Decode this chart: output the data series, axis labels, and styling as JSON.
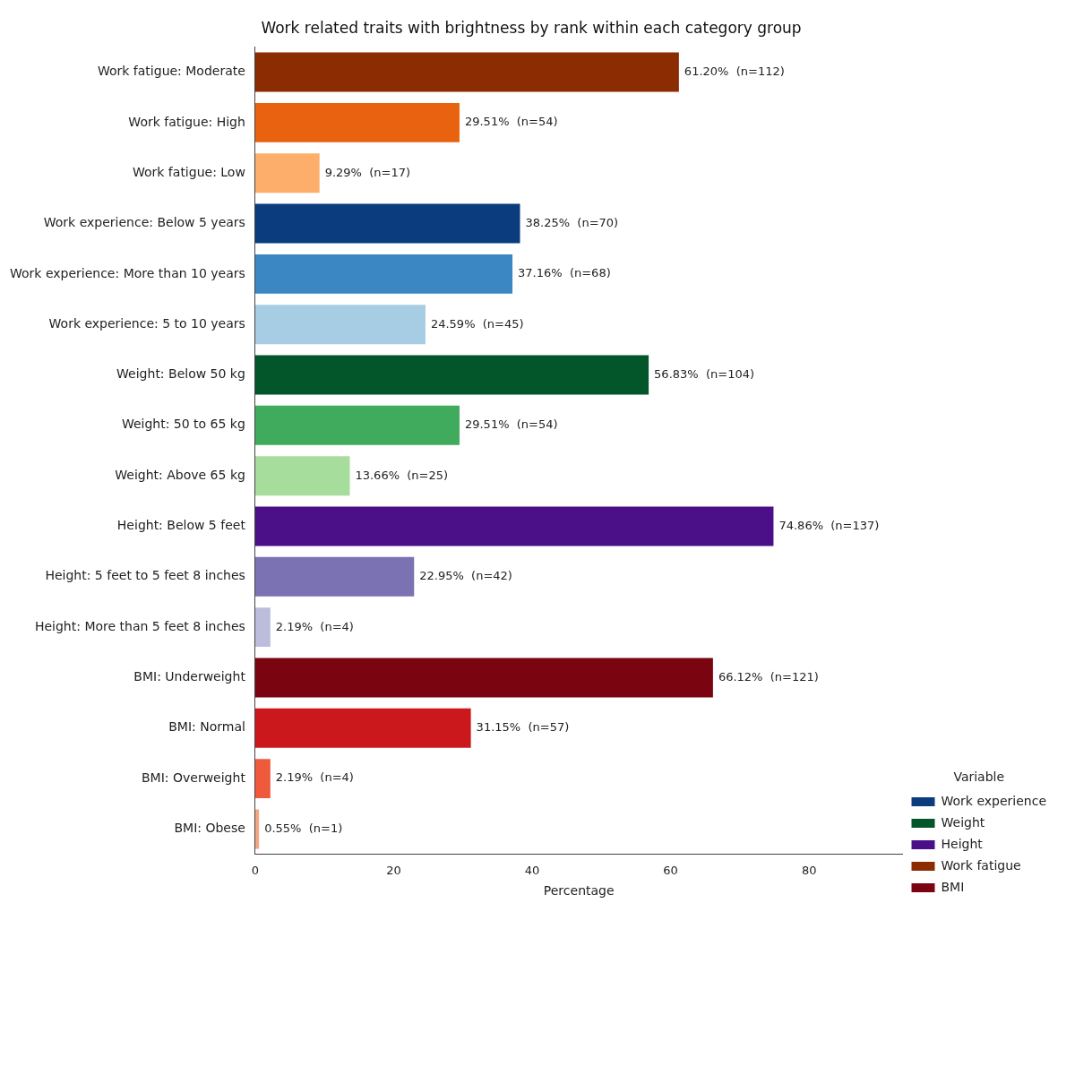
{
  "chart_data": {
    "type": "bar",
    "orientation": "horizontal",
    "title": "Work related traits with brightness by rank within each category group",
    "xlabel": "Percentage",
    "legend_title": "Variable",
    "legend": "bottom right",
    "grid": false,
    "categories": [
      "Work fatigue: Moderate",
      "Work fatigue: High",
      "Work fatigue: Low",
      "Work experience: Below 5 years",
      "Work experience: More than 10 years",
      "Work experience: 5 to 10 years",
      "Weight: Below 50 kg",
      "Weight: 50 to 65 kg",
      "Weight: Above 65 kg",
      "Height: Below 5 feet",
      "Height: 5 feet to 5 feet 8 inches",
      "Height: More than 5 feet 8 inches",
      "BMI: Underweight",
      "BMI: Normal",
      "BMI: Overweight",
      "BMI: Obese"
    ],
    "xlim": [
      0,
      93.5
    ],
    "xticks": [
      0,
      20,
      40,
      60,
      80
    ],
    "series": [
      {
        "name": "Work experience",
        "color": "#0b3c7e",
        "values": [
          null,
          null,
          null,
          38.25,
          37.16,
          24.59,
          null,
          null,
          null,
          null,
          null,
          null,
          null,
          null,
          null,
          null
        ],
        "colors": [
          null,
          null,
          null,
          "#0b3c7e",
          "#3a87c4",
          "#a6cde3",
          null,
          null,
          null,
          null,
          null,
          null,
          null,
          null,
          null,
          null
        ],
        "value_labels": [
          null,
          null,
          null,
          "38.25%  (n=70)",
          "37.16%  (n=68)",
          "24.59%  (n=45)",
          null,
          null,
          null,
          null,
          null,
          null,
          null,
          null,
          null,
          null
        ]
      },
      {
        "name": "Weight",
        "color": "#03552a",
        "values": [
          null,
          null,
          null,
          null,
          null,
          null,
          56.83,
          29.51,
          13.66,
          null,
          null,
          null,
          null,
          null,
          null,
          null
        ],
        "colors": [
          null,
          null,
          null,
          null,
          null,
          null,
          "#03552a",
          "#41ab5d",
          "#a6dc9c",
          null,
          null,
          null,
          null,
          null,
          null,
          null
        ],
        "value_labels": [
          null,
          null,
          null,
          null,
          null,
          null,
          "56.83%  (n=104)",
          "29.51%  (n=54)",
          "13.66%  (n=25)",
          null,
          null,
          null,
          null,
          null,
          null,
          null
        ]
      },
      {
        "name": "Height",
        "color": "#4b1088",
        "values": [
          null,
          null,
          null,
          null,
          null,
          null,
          null,
          null,
          null,
          74.86,
          22.95,
          2.19,
          null,
          null,
          null,
          null
        ],
        "colors": [
          null,
          null,
          null,
          null,
          null,
          null,
          null,
          null,
          null,
          "#4b1088",
          "#7b72b3",
          "#bcbddc",
          null,
          null,
          null,
          null
        ],
        "value_labels": [
          null,
          null,
          null,
          null,
          null,
          null,
          null,
          null,
          null,
          "74.86%  (n=137)",
          "22.95%  (n=42)",
          "2.19%  (n=4)",
          null,
          null,
          null,
          null
        ]
      },
      {
        "name": "Work fatigue",
        "color": "#8b2c02",
        "values": [
          61.2,
          29.51,
          9.29,
          null,
          null,
          null,
          null,
          null,
          null,
          null,
          null,
          null,
          null,
          null,
          null,
          null
        ],
        "colors": [
          "#8b2c02",
          "#e8620f",
          "#fdae6b",
          null,
          null,
          null,
          null,
          null,
          null,
          null,
          null,
          null,
          null,
          null,
          null,
          null
        ],
        "value_labels": [
          "61.20%  (n=112)",
          "29.51%  (n=54)",
          "9.29%  (n=17)",
          null,
          null,
          null,
          null,
          null,
          null,
          null,
          null,
          null,
          null,
          null,
          null,
          null
        ]
      },
      {
        "name": "BMI",
        "color": "#7a0510",
        "values": [
          null,
          null,
          null,
          null,
          null,
          null,
          null,
          null,
          null,
          null,
          null,
          null,
          66.12,
          31.15,
          2.19,
          0.55
        ],
        "colors": [
          null,
          null,
          null,
          null,
          null,
          null,
          null,
          null,
          null,
          null,
          null,
          null,
          "#7a0510",
          "#cb181d",
          "#ef5a3c",
          "#f4a582"
        ],
        "value_labels": [
          null,
          null,
          null,
          null,
          null,
          null,
          null,
          null,
          null,
          null,
          null,
          null,
          "66.12%  (n=121)",
          "31.15%  (n=57)",
          "2.19%  (n=4)",
          "0.55%  (n=1)"
        ]
      }
    ]
  }
}
